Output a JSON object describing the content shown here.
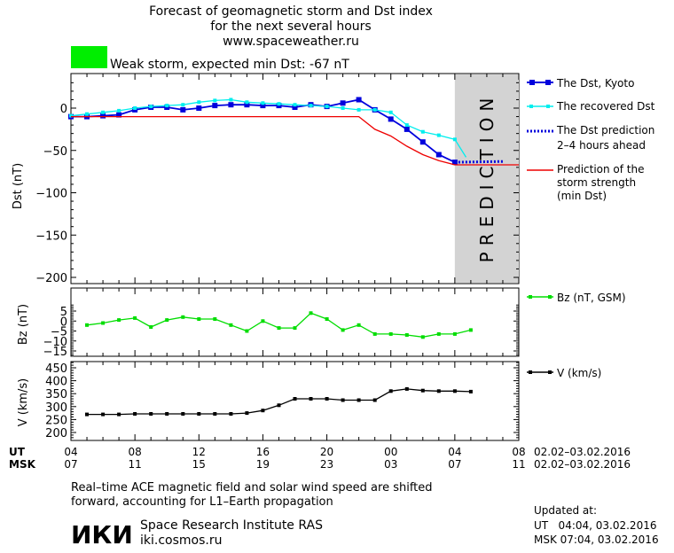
{
  "header": {
    "title_lines": [
      "Forecast of geomagnetic storm and Dst index",
      "for the next several hours",
      "www.spaceweather.ru"
    ],
    "storm_status": "Weak storm, expected min Dst: -67 nT",
    "storm_color": "#00ee00"
  },
  "colors": {
    "dst_kyoto": "#0000dd",
    "dst_recovered": "#00eeee",
    "dst_prediction": "#0000dd",
    "storm_strength": "#ee0000",
    "bz": "#00dd00",
    "v": "#000000",
    "prediction_band": "#d3d3d3"
  },
  "prediction_band_label": "PREDICTION",
  "time_axis": {
    "ut_label": "UT",
    "msk_label": "MSK",
    "ut_ticks": [
      "04",
      "08",
      "12",
      "16",
      "20",
      "00",
      "04",
      "08"
    ],
    "msk_ticks": [
      "07",
      "11",
      "15",
      "19",
      "23",
      "03",
      "07",
      "11"
    ],
    "ut_range": "02.02–03.02.2016",
    "msk_range": "02.02–03.02.2016"
  },
  "legends": {
    "dst_kyoto": "The Dst, Kyoto",
    "dst_recovered": "The recovered Dst",
    "dst_prediction_1": "The Dst prediction",
    "dst_prediction_2": "2–4 hours ahead",
    "storm_1": "Prediction of the",
    "storm_2": "storm strength",
    "storm_3": "(min Dst)",
    "bz": "Bz (nT, GSM)",
    "v": "V (km/s)"
  },
  "footer": {
    "note_1": "Real–time ACE magnetic field and solar wind speed are shifted",
    "note_2": "forward, accounting for L1–Earth propagation",
    "logo_text": "ИКИ",
    "institute": "Space Research Institute RAS",
    "site": "iki.cosmos.ru",
    "updated_label": "Updated at:",
    "updated_ut": "UT   04:04, 03.02.2016",
    "updated_msk": "MSK 07:04, 03.02.2016"
  },
  "chart_data": [
    {
      "type": "line",
      "ylabel": "Dst (nT)",
      "ylim": [
        -200,
        30
      ],
      "xlim": [
        4,
        32
      ],
      "yticks": [
        0,
        -50,
        -100,
        -150,
        -200
      ],
      "prediction_band": [
        4,
        8
      ],
      "series": [
        {
          "name": "The Dst, Kyoto",
          "key": "dst_kyoto",
          "x": [
            4,
            5,
            6,
            7,
            8,
            9,
            10,
            11,
            12,
            13,
            14,
            15,
            16,
            17,
            18,
            19,
            20,
            21,
            22,
            23,
            24,
            25,
            26,
            27,
            28
          ],
          "y": [
            -10,
            -10,
            -9,
            -8,
            -2,
            1,
            1,
            -2,
            0,
            3,
            4,
            4,
            3,
            3,
            1,
            4,
            2,
            6,
            10,
            -2,
            -13,
            -25,
            -40,
            -55,
            -64
          ]
        },
        {
          "name": "The recovered Dst",
          "key": "dst_recovered",
          "x": [
            4,
            5,
            6,
            7,
            8,
            9,
            10,
            11,
            12,
            13,
            14,
            15,
            16,
            17,
            18,
            19,
            20,
            21,
            22,
            23,
            24,
            25,
            26,
            27,
            28,
            28.7
          ],
          "y": [
            -9,
            -7,
            -5,
            -3,
            0,
            2,
            3,
            4,
            7,
            9,
            10,
            7,
            6,
            5,
            4,
            3,
            2,
            0,
            -2,
            -2,
            -5,
            -20,
            -28,
            -32,
            -37,
            -58
          ]
        },
        {
          "name": "The Dst prediction",
          "key": "dst_prediction",
          "x": [
            28,
            31
          ],
          "y": [
            -64,
            -63
          ]
        },
        {
          "name": "Prediction of the storm strength (min Dst)",
          "key": "storm_strength",
          "x": [
            4,
            22,
            23,
            24,
            25,
            26,
            27,
            28,
            32
          ],
          "y": [
            -10,
            -10,
            -25,
            -33,
            -45,
            -55,
            -62,
            -67,
            -67
          ]
        }
      ]
    },
    {
      "type": "line",
      "ylabel": "Bz (nT)",
      "ylim": [
        -18,
        8
      ],
      "yticks": [
        5,
        0,
        -5,
        -10,
        -15
      ],
      "series": [
        {
          "name": "Bz (nT, GSM)",
          "key": "bz",
          "x": [
            5,
            6,
            7,
            8,
            9,
            10,
            11,
            12,
            13,
            14,
            15,
            16,
            17,
            18,
            19,
            20,
            21,
            22,
            23,
            24,
            25,
            26,
            27,
            28,
            29
          ],
          "y": [
            -2,
            -1,
            0.5,
            1.5,
            -3,
            0.5,
            2,
            1,
            1,
            -2,
            -5,
            0,
            -3.5,
            -3.5,
            4,
            1,
            -4.5,
            -2,
            -6.5,
            -6.5,
            -7,
            -8,
            -6.5,
            -6.5,
            -4.5
          ]
        }
      ]
    },
    {
      "type": "line",
      "ylabel": "V (km/s)",
      "ylim": [
        180,
        470
      ],
      "yticks": [
        450,
        400,
        350,
        300,
        250,
        200
      ],
      "series": [
        {
          "name": "V (km/s)",
          "key": "v",
          "x": [
            5,
            6,
            7,
            8,
            9,
            10,
            11,
            12,
            13,
            14,
            15,
            16,
            17,
            18,
            19,
            20,
            21,
            22,
            23,
            24,
            25,
            26,
            27,
            28,
            29
          ],
          "y": [
            270,
            270,
            270,
            272,
            272,
            272,
            272,
            272,
            272,
            272,
            275,
            285,
            305,
            330,
            330,
            330,
            325,
            325,
            325,
            360,
            368,
            362,
            360,
            360,
            358
          ]
        }
      ]
    }
  ]
}
